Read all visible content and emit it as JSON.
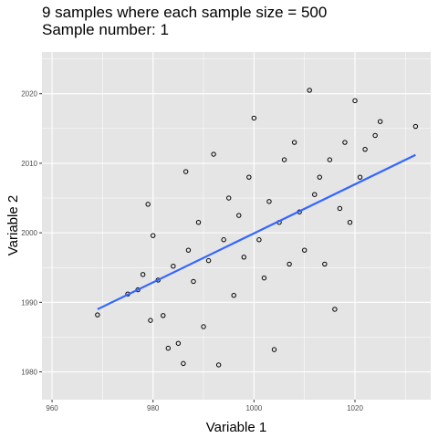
{
  "titles": [
    "9 samples where each sample size = 500",
    "Sample number: 1"
  ],
  "chart_data": {
    "type": "scatter",
    "title": "9 samples where each sample size = 500",
    "subtitle": "Sample number: 1",
    "xlabel": "Variable 1",
    "ylabel": "Variable 2",
    "xlim": [
      958,
      1035
    ],
    "ylim": [
      1976,
      2026
    ],
    "x_ticks": [
      960,
      980,
      1000,
      1020
    ],
    "y_ticks": [
      1980,
      1990,
      2000,
      2010,
      2020
    ],
    "x_tick_labels": [
      "960",
      "980",
      "1000",
      "1020"
    ],
    "y_tick_labels": [
      "1980",
      "1990",
      "2000",
      "2010",
      "2020"
    ],
    "grid": true,
    "legend": "none",
    "colors": {
      "panel": "#e5e5e5",
      "grid": "#ffffff",
      "points_edge": "#000000",
      "fit_line": "#3366ff"
    },
    "fit_line": {
      "method": "lm",
      "x": [
        969,
        1032
      ],
      "y": [
        1989.0,
        2011.2
      ]
    },
    "points": [
      {
        "x": 969,
        "y": 1988.2
      },
      {
        "x": 975,
        "y": 1991.2
      },
      {
        "x": 977,
        "y": 1991.8
      },
      {
        "x": 978,
        "y": 1994.0
      },
      {
        "x": 979,
        "y": 2004.1
      },
      {
        "x": 979.5,
        "y": 1987.4
      },
      {
        "x": 980,
        "y": 1999.6
      },
      {
        "x": 981,
        "y": 1993.2
      },
      {
        "x": 982,
        "y": 1988.1
      },
      {
        "x": 983,
        "y": 1983.4
      },
      {
        "x": 984,
        "y": 1995.2
      },
      {
        "x": 985,
        "y": 1984.1
      },
      {
        "x": 986,
        "y": 1981.2
      },
      {
        "x": 986.5,
        "y": 2008.8
      },
      {
        "x": 987,
        "y": 1997.5
      },
      {
        "x": 988,
        "y": 1993.0
      },
      {
        "x": 989,
        "y": 2001.5
      },
      {
        "x": 990,
        "y": 1986.5
      },
      {
        "x": 991,
        "y": 1996.0
      },
      {
        "x": 992,
        "y": 2011.3
      },
      {
        "x": 993,
        "y": 1981.0
      },
      {
        "x": 994,
        "y": 1999.0
      },
      {
        "x": 995,
        "y": 2005.0
      },
      {
        "x": 996,
        "y": 1991.0
      },
      {
        "x": 997,
        "y": 2002.5
      },
      {
        "x": 998,
        "y": 1996.5
      },
      {
        "x": 999,
        "y": 2008.0
      },
      {
        "x": 1000,
        "y": 2016.5
      },
      {
        "x": 1001,
        "y": 1999.0
      },
      {
        "x": 1002,
        "y": 1993.5
      },
      {
        "x": 1003,
        "y": 2004.5
      },
      {
        "x": 1004,
        "y": 1983.2
      },
      {
        "x": 1005,
        "y": 2001.5
      },
      {
        "x": 1006,
        "y": 2010.5
      },
      {
        "x": 1007,
        "y": 1995.5
      },
      {
        "x": 1008,
        "y": 2013.0
      },
      {
        "x": 1009,
        "y": 2003.0
      },
      {
        "x": 1010,
        "y": 1997.5
      },
      {
        "x": 1011,
        "y": 2020.5
      },
      {
        "x": 1012,
        "y": 2005.5
      },
      {
        "x": 1013,
        "y": 2008.0
      },
      {
        "x": 1014,
        "y": 1995.5
      },
      {
        "x": 1015,
        "y": 2010.5
      },
      {
        "x": 1016,
        "y": 1989.0
      },
      {
        "x": 1017,
        "y": 2003.5
      },
      {
        "x": 1018,
        "y": 2013.0
      },
      {
        "x": 1019,
        "y": 2001.5
      },
      {
        "x": 1020,
        "y": 2019.0
      },
      {
        "x": 1021,
        "y": 2008.0
      },
      {
        "x": 1022,
        "y": 2012.0
      },
      {
        "x": 1024,
        "y": 2014.0
      },
      {
        "x": 1025,
        "y": 2016.0
      },
      {
        "x": 1032,
        "y": 2015.3
      }
    ]
  }
}
